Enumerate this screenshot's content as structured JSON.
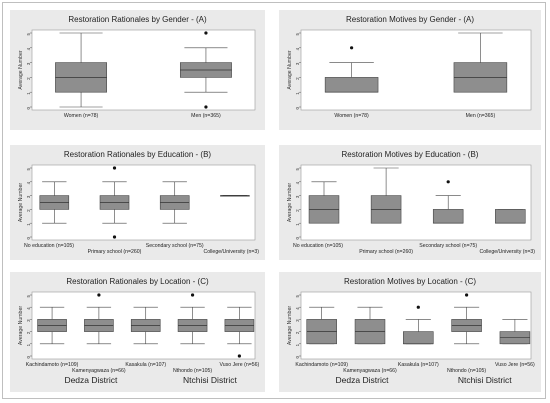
{
  "chart_data": [
    {
      "type": "boxplot",
      "panel": "A1",
      "title": "Restoration Rationales by Gender - (A)",
      "ylabel": "Average Number",
      "ylim": [
        0,
        5
      ],
      "yticks": [
        "0",
        "1",
        "2",
        "3",
        "4",
        "5"
      ],
      "categories": [
        "Women (n=78)",
        "Men (n=365)"
      ],
      "boxes": [
        {
          "min": 0,
          "q1": 1,
          "median": 2,
          "q3": 3,
          "max": 5,
          "outliers": []
        },
        {
          "min": 1,
          "q1": 2,
          "median": 2.5,
          "q3": 3,
          "max": 4,
          "outliers": [
            5,
            0
          ]
        }
      ]
    },
    {
      "type": "boxplot",
      "panel": "A2",
      "title": "Restoration Motives by Gender - (A)",
      "ylabel": "Average Number",
      "ylim": [
        0,
        5
      ],
      "yticks": [
        "0",
        "1",
        "2",
        "3",
        "4",
        "5"
      ],
      "categories": [
        "Women (n=78)",
        "Men (n=365)"
      ],
      "boxes": [
        {
          "min": 1,
          "q1": 1,
          "median": 1,
          "q3": 2,
          "max": 3,
          "outliers": [
            4
          ]
        },
        {
          "min": 1,
          "q1": 1,
          "median": 2,
          "q3": 3,
          "max": 5,
          "outliers": []
        }
      ]
    },
    {
      "type": "boxplot",
      "panel": "B1",
      "title": "Restoration Rationales by Education - (B)",
      "ylabel": "Average Number",
      "ylim": [
        0,
        5
      ],
      "yticks": [
        "0",
        "1",
        "2",
        "3",
        "4",
        "5"
      ],
      "categories": [
        "No education (n=105)",
        "Primary school (n=260)",
        "Secondary school (n=75)",
        "College/University (n=3)"
      ],
      "boxes": [
        {
          "min": 1,
          "q1": 2,
          "median": 2.5,
          "q3": 3,
          "max": 4,
          "outliers": []
        },
        {
          "min": 1,
          "q1": 2,
          "median": 2.5,
          "q3": 3,
          "max": 4,
          "outliers": [
            5,
            0
          ]
        },
        {
          "min": 1,
          "q1": 2,
          "median": 2.5,
          "q3": 3,
          "max": 4,
          "outliers": []
        },
        {
          "min": 3,
          "q1": 3,
          "median": 3,
          "q3": 3,
          "max": 3,
          "outliers": []
        }
      ]
    },
    {
      "type": "boxplot",
      "panel": "B2",
      "title": "Restoration Motives by Education - (B)",
      "ylabel": "Average Number",
      "ylim": [
        0,
        5
      ],
      "yticks": [
        "0",
        "1",
        "2",
        "3",
        "4",
        "5"
      ],
      "categories": [
        "No education (n=105)",
        "Primary school (n=260)",
        "Secondary school (n=75)",
        "College/University (n=3)"
      ],
      "boxes": [
        {
          "min": 1,
          "q1": 1,
          "median": 2,
          "q3": 3,
          "max": 4,
          "outliers": []
        },
        {
          "min": 1,
          "q1": 1,
          "median": 2,
          "q3": 3,
          "max": 5,
          "outliers": []
        },
        {
          "min": 1,
          "q1": 1,
          "median": 1,
          "q3": 2,
          "max": 3,
          "outliers": [
            4
          ]
        },
        {
          "min": 1,
          "q1": 1,
          "median": 1,
          "q3": 2,
          "max": 2,
          "outliers": []
        }
      ]
    },
    {
      "type": "boxplot",
      "panel": "C1",
      "title": "Restoration Rationales by Location - (C)",
      "ylabel": "Average Number",
      "ylim": [
        0,
        5
      ],
      "yticks": [
        "0",
        "1",
        "2",
        "3",
        "4",
        "5"
      ],
      "categories": [
        "Kachindamoto (n=109)",
        "Kamenyagwaza (n=66)",
        "Kasakula (n=107)",
        "Nthondo (n=105)",
        "Vuso Jere (n=56)"
      ],
      "districts": [
        "Dedza District",
        "Ntchisi District"
      ],
      "boxes": [
        {
          "min": 1,
          "q1": 2,
          "median": 2.5,
          "q3": 3,
          "max": 4,
          "outliers": []
        },
        {
          "min": 1,
          "q1": 2,
          "median": 2.5,
          "q3": 3,
          "max": 4,
          "outliers": [
            5
          ]
        },
        {
          "min": 1,
          "q1": 2,
          "median": 2.5,
          "q3": 3,
          "max": 4,
          "outliers": []
        },
        {
          "min": 1,
          "q1": 2,
          "median": 2.5,
          "q3": 3,
          "max": 4,
          "outliers": [
            5
          ]
        },
        {
          "min": 1,
          "q1": 2,
          "median": 2.5,
          "q3": 3,
          "max": 4,
          "outliers": [
            0
          ]
        }
      ]
    },
    {
      "type": "boxplot",
      "panel": "C2",
      "title": "Restoration Motives by Location - (C)",
      "ylabel": "Average Number",
      "ylim": [
        0,
        5
      ],
      "yticks": [
        "0",
        "1",
        "2",
        "3",
        "4",
        "5"
      ],
      "categories": [
        "Kachindamoto (n=109)",
        "Kamenyagwaza (n=66)",
        "Kasakula (n=107)",
        "Nthondo (n=105)",
        "Vuso Jere (n=56)"
      ],
      "districts": [
        "Dedza District",
        "Ntchisi District"
      ],
      "boxes": [
        {
          "min": 1,
          "q1": 1,
          "median": 2,
          "q3": 3,
          "max": 4,
          "outliers": []
        },
        {
          "min": 1,
          "q1": 1,
          "median": 2,
          "q3": 3,
          "max": 4,
          "outliers": []
        },
        {
          "min": 1,
          "q1": 1,
          "median": 1,
          "q3": 2,
          "max": 3,
          "outliers": [
            4
          ]
        },
        {
          "min": 1,
          "q1": 2,
          "median": 2.5,
          "q3": 3,
          "max": 4,
          "outliers": [
            5
          ]
        },
        {
          "min": 1,
          "q1": 1,
          "median": 1.5,
          "q3": 2,
          "max": 3,
          "outliers": []
        }
      ]
    }
  ]
}
